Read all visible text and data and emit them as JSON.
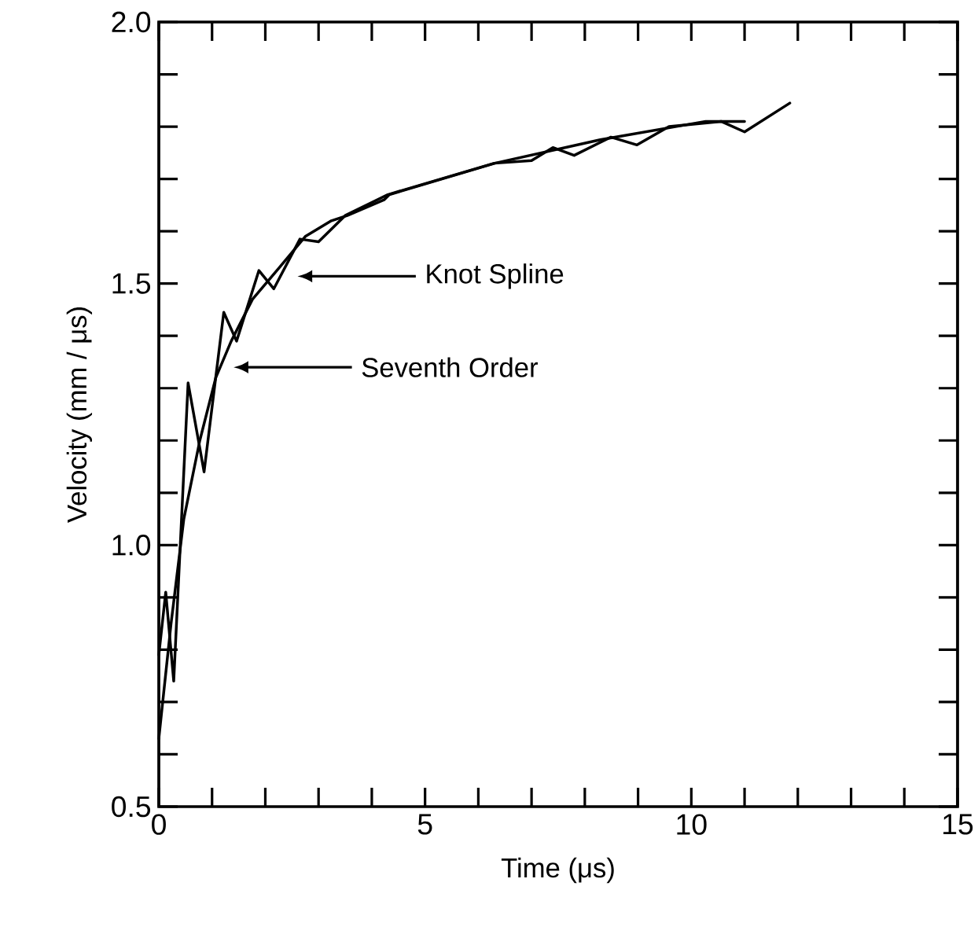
{
  "chart_data": {
    "type": "line",
    "xlabel": "Time  (μs)",
    "ylabel": "Velocity  (mm / μs)",
    "xlim": [
      0,
      15
    ],
    "ylim": [
      0.5,
      2.0
    ],
    "xticks": [
      0,
      {
        "value": 1,
        "label": null
      },
      {
        "value": 2,
        "label": null
      },
      {
        "value": 3,
        "label": null
      },
      {
        "value": 4,
        "label": null
      },
      5,
      {
        "value": 6,
        "label": null
      },
      {
        "value": 7,
        "label": null
      },
      {
        "value": 8,
        "label": null
      },
      {
        "value": 9,
        "label": null
      },
      10,
      {
        "value": 11,
        "label": null
      },
      {
        "value": 12,
        "label": null
      },
      {
        "value": 13,
        "label": null
      },
      {
        "value": 14,
        "label": null
      },
      15
    ],
    "yticks": [
      0.5,
      {
        "value": 0.6,
        "label": null
      },
      {
        "value": 0.7,
        "label": null
      },
      {
        "value": 0.8,
        "label": null
      },
      {
        "value": 0.9,
        "label": null
      },
      {
        "value": 1.0,
        "label": "1.0"
      },
      {
        "value": 1.1,
        "label": null
      },
      {
        "value": 1.2,
        "label": null
      },
      {
        "value": 1.3,
        "label": null
      },
      {
        "value": 1.4,
        "label": null
      },
      1.5,
      {
        "value": 1.6,
        "label": null
      },
      {
        "value": 1.7,
        "label": null
      },
      {
        "value": 1.8,
        "label": null
      },
      {
        "value": 1.9,
        "label": null
      },
      {
        "value": 2.0,
        "label": "2.0"
      }
    ],
    "grid": false,
    "marker": "none",
    "line_style": "solid",
    "series": [
      {
        "color": "#000000",
        "x": [
          0,
          0.23,
          0.47,
          0.77,
          1.07,
          1.36,
          1.76,
          2.26,
          2.75,
          3.24,
          3.54,
          4.23,
          4.33,
          6.31,
          8.29,
          10.27,
          11.0
        ],
        "values": [
          0.63,
          0.85,
          1.05,
          1.2,
          1.32,
          1.39,
          1.47,
          1.53,
          1.59,
          1.62,
          1.63,
          1.66,
          1.67,
          1.73,
          1.775,
          1.81,
          1.81
        ]
      },
      {
        "color": "#000000",
        "x": [
          0,
          0.13,
          0.28,
          0.55,
          0.85,
          1.22,
          1.46,
          1.88,
          2.16,
          2.65,
          3.0,
          3.5,
          4.3,
          5.3,
          6.3,
          7.0,
          7.4,
          7.8,
          8.49,
          8.98,
          9.58,
          10.56,
          11.0,
          11.85
        ],
        "values": [
          0.79,
          0.91,
          0.74,
          1.31,
          1.14,
          1.445,
          1.39,
          1.525,
          1.49,
          1.585,
          1.58,
          1.63,
          1.67,
          1.7,
          1.73,
          1.735,
          1.76,
          1.745,
          1.78,
          1.765,
          1.8,
          1.81,
          1.79,
          1.845
        ]
      }
    ],
    "annotations": [
      "Knot  Spline",
      "Seventh  Order"
    ]
  }
}
